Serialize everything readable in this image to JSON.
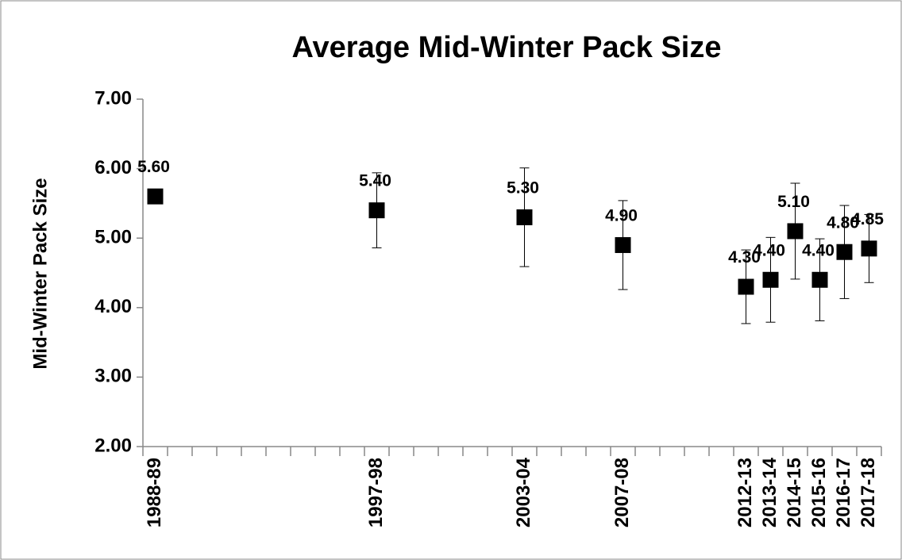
{
  "chart_data": {
    "type": "scatter",
    "title": "Average Mid-Winter Pack Size",
    "ylabel": "Mid-Winter Pack Size",
    "categories": [
      "1988-89",
      null,
      null,
      null,
      null,
      null,
      null,
      null,
      null,
      "1997-98",
      null,
      null,
      null,
      null,
      null,
      "2003-04",
      null,
      null,
      null,
      "2007-08",
      null,
      null,
      null,
      null,
      "2012-13",
      "2013-14",
      "2014-15",
      "2015-16",
      "2016-17",
      "2017-18"
    ],
    "color": "#000000",
    "values": [
      5.6,
      null,
      null,
      null,
      null,
      null,
      null,
      null,
      null,
      5.4,
      null,
      null,
      null,
      null,
      null,
      5.3,
      null,
      null,
      null,
      4.9,
      null,
      null,
      null,
      null,
      4.3,
      4.4,
      5.1,
      4.4,
      4.8,
      4.85
    ],
    "errors": [
      null,
      null,
      null,
      null,
      null,
      null,
      null,
      null,
      null,
      0.54,
      null,
      null,
      null,
      null,
      null,
      0.71,
      null,
      null,
      null,
      0.64,
      null,
      null,
      null,
      null,
      0.53,
      0.61,
      0.69,
      0.59,
      0.67,
      0.49
    ],
    "value_labels": [
      "5.60",
      null,
      null,
      null,
      null,
      null,
      null,
      null,
      null,
      "5.40",
      null,
      null,
      null,
      null,
      null,
      "5.30",
      null,
      null,
      null,
      "4.90",
      null,
      null,
      null,
      null,
      "4.30",
      "4.40",
      "5.10",
      "4.40",
      "4.80",
      "4.85"
    ],
    "ylim": [
      2,
      7
    ],
    "yticks": [
      {
        "value": 2,
        "label": "2.00"
      },
      {
        "value": 3,
        "label": "3.00"
      },
      {
        "value": 4,
        "label": "4.00"
      },
      {
        "value": 5,
        "label": "5.00"
      },
      {
        "value": 6,
        "label": "6.00"
      },
      {
        "value": 7,
        "label": "7.00"
      }
    ]
  }
}
